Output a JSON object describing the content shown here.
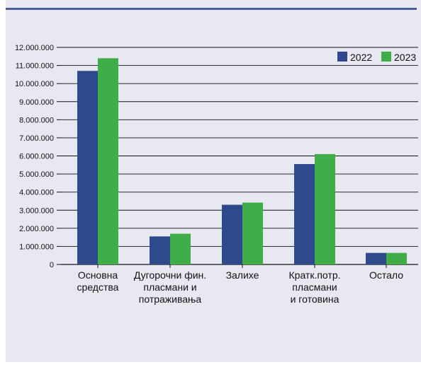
{
  "colors": {
    "background": "#e8e8f2",
    "series_2022": "#2e4a8c",
    "series_2023": "#3fae49",
    "grid": "#111111"
  },
  "chart_data": {
    "type": "bar",
    "title": "",
    "xlabel": "",
    "ylabel": "",
    "categories": [
      [
        "Основна",
        "средства"
      ],
      [
        "Дугорочни фин.",
        "пласмани и",
        "потраживања"
      ],
      [
        "Залихе"
      ],
      [
        "Кратк.потр.",
        "пласмани",
        "и готовина"
      ],
      [
        "Остало"
      ]
    ],
    "series": [
      {
        "name": "2022",
        "color": "#2e4a8c",
        "values": [
          10700000,
          1550000,
          3300000,
          5550000,
          640000
        ]
      },
      {
        "name": "2023",
        "color": "#3fae49",
        "values": [
          11400000,
          1700000,
          3420000,
          6100000,
          640000
        ]
      }
    ],
    "ylim": [
      0,
      12000000
    ],
    "yticks": [
      0,
      1000000,
      2000000,
      3000000,
      4000000,
      5000000,
      6000000,
      7000000,
      8000000,
      9000000,
      10000000,
      11000000,
      12000000
    ],
    "ytick_labels": [
      "0",
      "1.000.000",
      "2.000.000",
      "3.000.000",
      "4.000.000",
      "5.000.000",
      "6.000.000",
      "7.000.000",
      "8.000.000",
      "9.000.000",
      "10.000.000",
      "11.000.000",
      "12.000.000"
    ],
    "grid": true,
    "legend": {
      "placement": "top-right",
      "entries": [
        "2022",
        "2023"
      ]
    }
  }
}
